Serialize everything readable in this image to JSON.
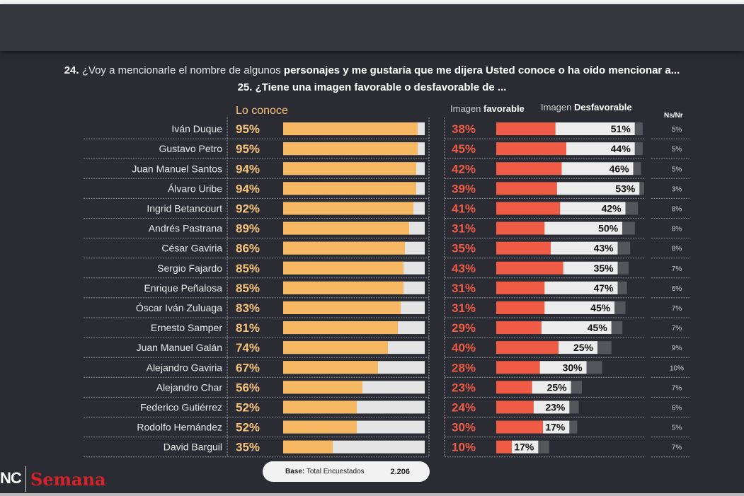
{
  "header": {
    "q24_num": "24.",
    "q24_text_light": " ¿Voy a mencionarle el nombre de algunos ",
    "q24_text_bold": "personajes y me gustaría  que me dijera  Usted conoce o ha oído mencionar a...",
    "q25": "25. ¿Tiene una imagen favorable o desfavorable de ..."
  },
  "columns": {
    "conoce": "Lo conoce",
    "fav_prefix": "Imagen ",
    "fav_bold": "favorable",
    "desfav_prefix": "Imagen ",
    "desfav_bold": "Desfavorable",
    "nsnr": "Ns/Nr"
  },
  "colors": {
    "conoce": "#f6b862",
    "conoce_text": "#f6c27a",
    "favorable": "#ef5b45",
    "desfavorable": "#ececec",
    "nsnr": "#55565c",
    "remainder": "#e4e4e4"
  },
  "chart_data": {
    "type": "bar",
    "title": "24. ¿Voy a mencionarle el nombre de algunos personajes y me gustaría que me dijera Usted conoce o ha oído mencionar a... / 25. ¿Tiene una imagen favorable o desfavorable de ...",
    "categories": [
      "Iván Duque",
      "Gustavo Petro",
      "Juan Manuel Santos",
      "Álvaro Uribe",
      "Ingrid Betancourt",
      "Andrés Pastrana",
      "César Gaviria",
      "Sergio Fajardo",
      "Enrique Peñalosa",
      "Óscar Iván Zuluaga",
      "Ernesto Samper",
      "Juan Manuel Galán",
      "Alejandro Gaviria",
      "Alejandro Char",
      "Federico Gutiérrez",
      "Rodolfo Hernández",
      "David Barguil"
    ],
    "series": [
      {
        "name": "Lo conoce",
        "unit": "%",
        "values": [
          95,
          95,
          94,
          94,
          92,
          89,
          86,
          85,
          85,
          83,
          81,
          74,
          67,
          56,
          52,
          52,
          35
        ]
      },
      {
        "name": "Imagen favorable",
        "unit": "%",
        "values": [
          38,
          45,
          42,
          39,
          41,
          31,
          35,
          43,
          31,
          31,
          29,
          40,
          28,
          23,
          24,
          30,
          10
        ]
      },
      {
        "name": "Imagen Desfavorable",
        "unit": "%",
        "values": [
          51,
          44,
          46,
          53,
          42,
          50,
          43,
          35,
          47,
          45,
          45,
          25,
          30,
          25,
          23,
          17,
          17
        ]
      },
      {
        "name": "Ns/Nr",
        "unit": "%",
        "values": [
          5,
          5,
          5,
          3,
          8,
          8,
          8,
          7,
          6,
          7,
          7,
          9,
          10,
          7,
          6,
          5,
          7
        ]
      }
    ],
    "ylim": [
      0,
      100
    ],
    "legend": "top",
    "grid": false
  },
  "footer": {
    "base_label_bold": "Base:",
    "base_label": " Total Encuestados",
    "base_value": "2.206",
    "logo_left": "NC",
    "logo_right": "Semana"
  }
}
